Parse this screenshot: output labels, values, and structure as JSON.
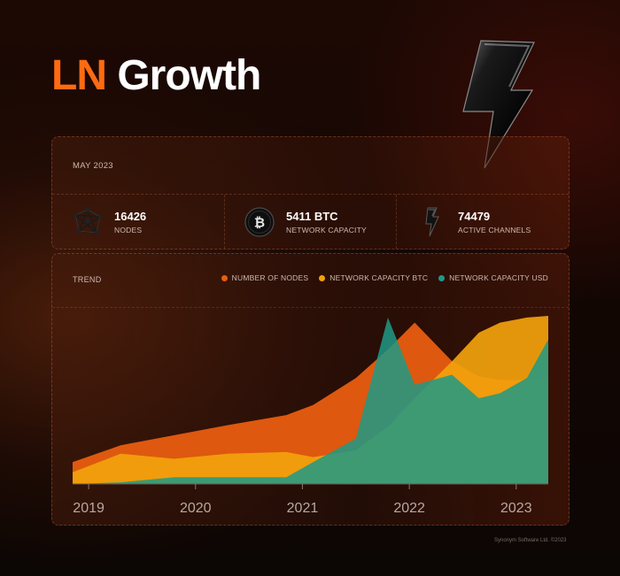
{
  "title": {
    "accent": "LN",
    "rest": "Growth"
  },
  "summary": {
    "date": "MAY 2023",
    "stats": [
      {
        "value": "16426",
        "label": "NODES",
        "icon": "network-nodes-icon"
      },
      {
        "value": "5411 BTC",
        "label": "NETWORK CAPACITY",
        "icon": "bitcoin-coin-icon"
      },
      {
        "value": "74479",
        "label": "ACTIVE CHANNELS",
        "icon": "channel-bolt-icon"
      }
    ]
  },
  "trend": {
    "title": "TREND",
    "legend": [
      {
        "label": "NUMBER OF NODES",
        "color": "#e85d10"
      },
      {
        "label": "NETWORK CAPACITY BTC",
        "color": "#f2a20c"
      },
      {
        "label": "NETWORK CAPACITY USD",
        "color": "#1f9a86"
      }
    ]
  },
  "chart_data": {
    "type": "area",
    "x_unit": "year",
    "x": [
      2018.85,
      2019.3,
      2019.8,
      2020.3,
      2020.85,
      2021.1,
      2021.5,
      2021.8,
      2022.05,
      2022.4,
      2022.65,
      2022.85,
      2023.1,
      2023.3
    ],
    "xticks": [
      "2019",
      "2020",
      "2021",
      "2022",
      "2023"
    ],
    "xtick_values": [
      2019,
      2020,
      2021,
      2022,
      2023
    ],
    "ylim": [
      0,
      100
    ],
    "y_relative": true,
    "series": [
      {
        "name": "NUMBER OF NODES",
        "color": "#e85d10",
        "values": [
          13,
          23,
          29,
          35,
          41,
          47,
          63,
          80,
          96,
          73,
          64,
          62,
          62,
          63
        ]
      },
      {
        "name": "NETWORK CAPACITY BTC",
        "color": "#f2a20c",
        "values": [
          7,
          18,
          15,
          18,
          19,
          16,
          20,
          34,
          51,
          73,
          90,
          96,
          99,
          100
        ]
      },
      {
        "name": "NETWORK CAPACITY USD",
        "color": "#1f9a86",
        "values": [
          0,
          1,
          4,
          4,
          4,
          13,
          27,
          99,
          59,
          65,
          51,
          54,
          63,
          86
        ]
      }
    ]
  },
  "footer": "Synonym Software Ltd. ©2023"
}
